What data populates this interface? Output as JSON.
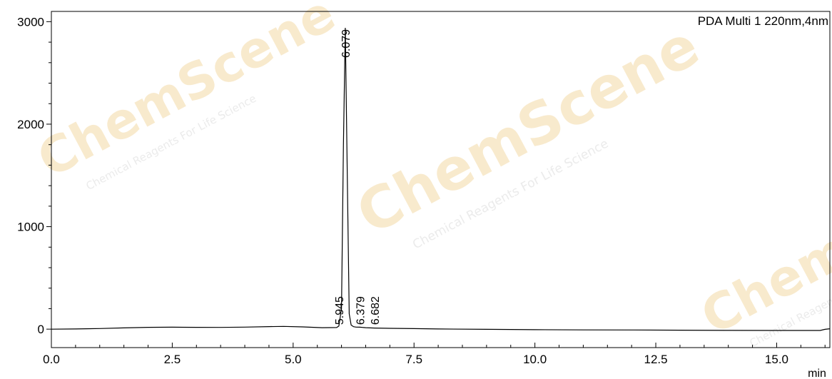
{
  "watermark": {
    "brand_parts": [
      "Chem",
      "Scene"
    ],
    "tagline": "Chemical Reagents For Life Science"
  },
  "chart_data": {
    "type": "line",
    "legend": "PDA Multi 1 220nm,4nm",
    "legend_position": "top-right",
    "xlabel": "min",
    "ylabel": "",
    "xlim": [
      0,
      16.1
    ],
    "ylim": [
      -180,
      3100
    ],
    "grid": false,
    "x_ticks": [
      0.0,
      2.5,
      5.0,
      7.5,
      10.0,
      12.5,
      15.0
    ],
    "x_tick_labels": [
      "0.0",
      "2.5",
      "5.0",
      "7.5",
      "10.0",
      "12.5",
      "15.0"
    ],
    "y_ticks": [
      0,
      1000,
      2000,
      3000
    ],
    "y_tick_labels": [
      "0",
      "1000",
      "2000",
      "3000"
    ],
    "peaks": [
      {
        "rt": 5.945,
        "label": "5.945"
      },
      {
        "rt": 6.079,
        "label": "6.079",
        "height": 2940
      },
      {
        "rt": 6.379,
        "label": "6.379"
      },
      {
        "rt": 6.682,
        "label": "6.682"
      }
    ],
    "series": [
      {
        "x": [
          0,
          0.5,
          1.0,
          1.5,
          2.0,
          2.5,
          3.0,
          3.5,
          4.0,
          4.5,
          4.8,
          5.2,
          5.6,
          5.9,
          5.945,
          6.0,
          6.04,
          6.079,
          6.12,
          6.16,
          6.2,
          6.25,
          6.3,
          6.379,
          6.5,
          6.682,
          7.0,
          7.5,
          8.0,
          9.0,
          10.0,
          11.0,
          12.0,
          13.0,
          14.0,
          15.0,
          15.9,
          16.0,
          16.1
        ],
        "y": [
          0,
          2,
          6,
          12,
          18,
          19,
          18,
          17,
          20,
          25,
          27,
          22,
          14,
          16,
          30,
          200,
          1800,
          2940,
          1500,
          150,
          40,
          24,
          20,
          19,
          14,
          11,
          8,
          5,
          2,
          -2,
          -5,
          -7,
          -8,
          -10,
          -12,
          -13,
          -13,
          -2,
          4
        ]
      }
    ]
  }
}
